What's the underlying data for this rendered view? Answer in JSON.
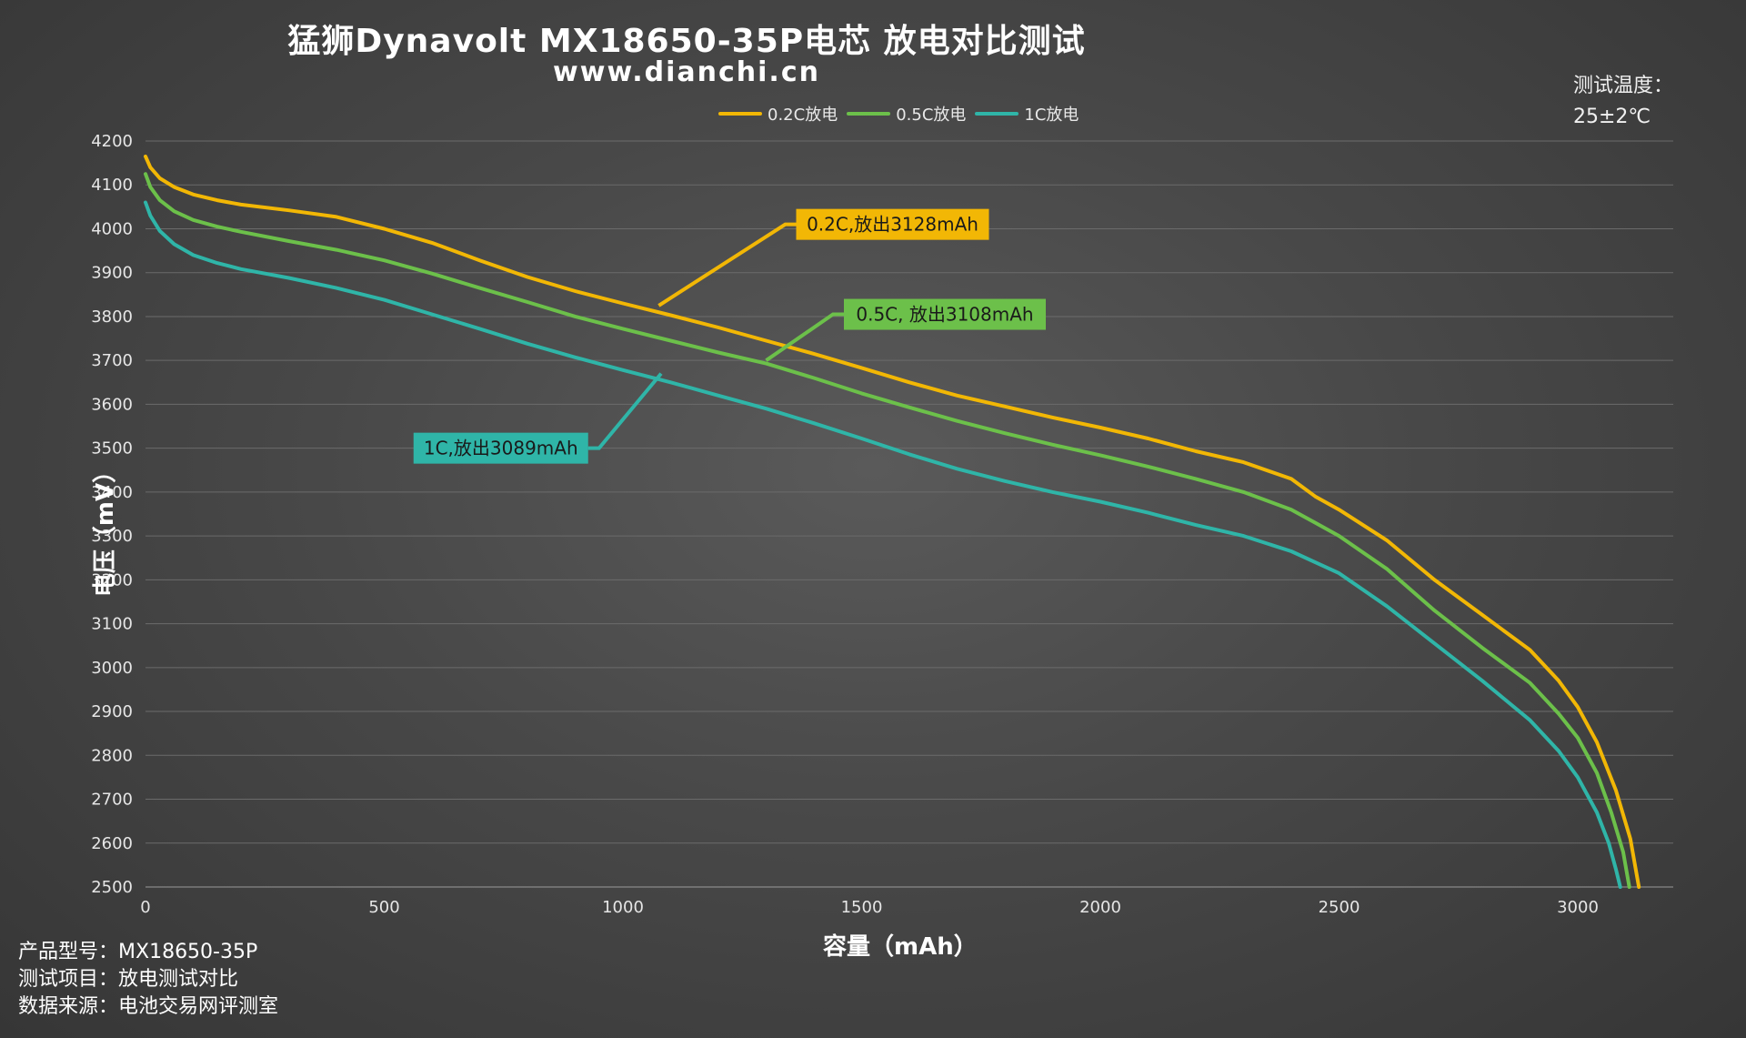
{
  "header": {
    "title": "猛狮Dynavolt MX18650-35P电芯 放电对比测试",
    "subtitle": "www.dianchi.cn"
  },
  "temperature": {
    "label": "测试温度：",
    "value": "25±2℃"
  },
  "footer": {
    "model_label": "产品型号：",
    "model_value": "MX18650-35P",
    "item_label": "测试项目：",
    "item_value": "放电测试对比",
    "source_label": "数据来源：",
    "source_value": "电池交易网评测室"
  },
  "chart_data": {
    "type": "line",
    "title": "猛狮Dynavolt MX18650-35P电芯 放电对比测试",
    "xlabel": "容量（mAh）",
    "ylabel": "电压（mV）",
    "xlim": [
      0,
      3200
    ],
    "ylim": [
      2500,
      4200
    ],
    "xticks": [
      0,
      500,
      1000,
      1500,
      2000,
      2500,
      3000
    ],
    "yticks": [
      2500,
      2600,
      2700,
      2800,
      2900,
      3000,
      3100,
      3200,
      3300,
      3400,
      3500,
      3600,
      3700,
      3800,
      3900,
      4000,
      4100,
      4200
    ],
    "grid": true,
    "legend_position": "top-center",
    "series": [
      {
        "name": "0.2C放电",
        "color": "#f2b705",
        "callout": "0.2C,放出3128mAh",
        "points": [
          [
            0,
            4165
          ],
          [
            10,
            4140
          ],
          [
            30,
            4115
          ],
          [
            60,
            4095
          ],
          [
            100,
            4078
          ],
          [
            150,
            4065
          ],
          [
            200,
            4055
          ],
          [
            300,
            4042
          ],
          [
            400,
            4027
          ],
          [
            500,
            4000
          ],
          [
            600,
            3968
          ],
          [
            700,
            3928
          ],
          [
            800,
            3890
          ],
          [
            900,
            3858
          ],
          [
            1000,
            3830
          ],
          [
            1100,
            3803
          ],
          [
            1200,
            3775
          ],
          [
            1300,
            3745
          ],
          [
            1400,
            3715
          ],
          [
            1500,
            3683
          ],
          [
            1600,
            3650
          ],
          [
            1700,
            3620
          ],
          [
            1800,
            3595
          ],
          [
            1900,
            3570
          ],
          [
            2000,
            3547
          ],
          [
            2100,
            3522
          ],
          [
            2200,
            3493
          ],
          [
            2300,
            3468
          ],
          [
            2400,
            3430
          ],
          [
            2450,
            3390
          ],
          [
            2500,
            3360
          ],
          [
            2600,
            3290
          ],
          [
            2700,
            3200
          ],
          [
            2800,
            3120
          ],
          [
            2900,
            3040
          ],
          [
            2960,
            2970
          ],
          [
            3000,
            2910
          ],
          [
            3040,
            2830
          ],
          [
            3080,
            2720
          ],
          [
            3110,
            2610
          ],
          [
            3128,
            2500
          ]
        ]
      },
      {
        "name": "0.5C放电",
        "color": "#6cc04a",
        "callout": "0.5C, 放出3108mAh",
        "points": [
          [
            0,
            4125
          ],
          [
            10,
            4095
          ],
          [
            30,
            4065
          ],
          [
            60,
            4040
          ],
          [
            100,
            4020
          ],
          [
            150,
            4005
          ],
          [
            200,
            3993
          ],
          [
            300,
            3972
          ],
          [
            400,
            3952
          ],
          [
            500,
            3928
          ],
          [
            600,
            3898
          ],
          [
            700,
            3865
          ],
          [
            800,
            3833
          ],
          [
            900,
            3800
          ],
          [
            1000,
            3772
          ],
          [
            1100,
            3745
          ],
          [
            1200,
            3718
          ],
          [
            1300,
            3693
          ],
          [
            1400,
            3660
          ],
          [
            1500,
            3625
          ],
          [
            1600,
            3593
          ],
          [
            1700,
            3562
          ],
          [
            1800,
            3534
          ],
          [
            1900,
            3508
          ],
          [
            2000,
            3484
          ],
          [
            2100,
            3458
          ],
          [
            2200,
            3430
          ],
          [
            2300,
            3400
          ],
          [
            2400,
            3360
          ],
          [
            2450,
            3330
          ],
          [
            2500,
            3300
          ],
          [
            2600,
            3225
          ],
          [
            2700,
            3130
          ],
          [
            2800,
            3045
          ],
          [
            2900,
            2965
          ],
          [
            2960,
            2895
          ],
          [
            3000,
            2840
          ],
          [
            3040,
            2760
          ],
          [
            3070,
            2670
          ],
          [
            3095,
            2580
          ],
          [
            3108,
            2500
          ]
        ]
      },
      {
        "name": "1C放电",
        "color": "#2fb5a8",
        "callout": "1C,放出3089mAh",
        "points": [
          [
            0,
            4060
          ],
          [
            10,
            4030
          ],
          [
            30,
            3995
          ],
          [
            60,
            3965
          ],
          [
            100,
            3940
          ],
          [
            150,
            3922
          ],
          [
            200,
            3908
          ],
          [
            300,
            3888
          ],
          [
            400,
            3865
          ],
          [
            500,
            3838
          ],
          [
            600,
            3805
          ],
          [
            700,
            3772
          ],
          [
            800,
            3738
          ],
          [
            900,
            3707
          ],
          [
            1000,
            3678
          ],
          [
            1100,
            3650
          ],
          [
            1200,
            3620
          ],
          [
            1300,
            3590
          ],
          [
            1400,
            3557
          ],
          [
            1500,
            3522
          ],
          [
            1600,
            3486
          ],
          [
            1700,
            3453
          ],
          [
            1800,
            3425
          ],
          [
            1900,
            3400
          ],
          [
            2000,
            3378
          ],
          [
            2100,
            3353
          ],
          [
            2200,
            3325
          ],
          [
            2300,
            3300
          ],
          [
            2400,
            3265
          ],
          [
            2450,
            3240
          ],
          [
            2500,
            3215
          ],
          [
            2600,
            3140
          ],
          [
            2700,
            3055
          ],
          [
            2800,
            2970
          ],
          [
            2900,
            2880
          ],
          [
            2960,
            2810
          ],
          [
            3000,
            2750
          ],
          [
            3040,
            2670
          ],
          [
            3065,
            2600
          ],
          [
            3080,
            2540
          ],
          [
            3089,
            2500
          ]
        ]
      }
    ]
  }
}
